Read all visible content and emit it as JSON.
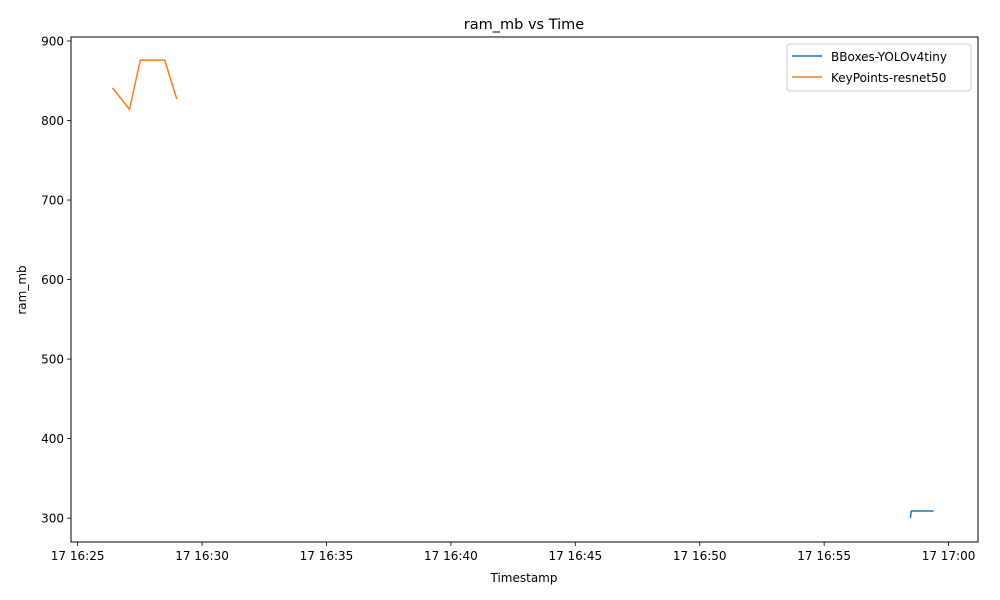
{
  "chart_data": {
    "type": "line",
    "title": "ram_mb vs Time",
    "xlabel": "Timestamp",
    "ylabel": "ram_mb",
    "x_type": "time",
    "xlim": [
      "17 16:24:44",
      "17 17:01:11"
    ],
    "ylim": [
      270,
      905
    ],
    "xticks": [
      "17 16:25",
      "17 16:30",
      "17 16:35",
      "17 16:40",
      "17 16:45",
      "17 16:50",
      "17 16:55",
      "17 17:00"
    ],
    "yticks": [
      300,
      400,
      500,
      600,
      700,
      800,
      900
    ],
    "grid": false,
    "legend_position": "top-right",
    "series": [
      {
        "name": "BBoxes-YOLOv4tiny",
        "color": "#1f77b4",
        "points": [
          {
            "x": "17 16:58:28",
            "y": 300
          },
          {
            "x": "17 16:58:30",
            "y": 309
          },
          {
            "x": "17 16:59:24",
            "y": 309
          }
        ]
      },
      {
        "name": "KeyPoints-resnet50",
        "color": "#ff7f0e",
        "points": [
          {
            "x": "17 16:26:24",
            "y": 841
          },
          {
            "x": "17 16:27:05",
            "y": 814
          },
          {
            "x": "17 16:27:31",
            "y": 876
          },
          {
            "x": "17 16:28:00",
            "y": 876
          },
          {
            "x": "17 16:28:30",
            "y": 876
          },
          {
            "x": "17 16:28:59",
            "y": 827
          }
        ]
      }
    ]
  }
}
